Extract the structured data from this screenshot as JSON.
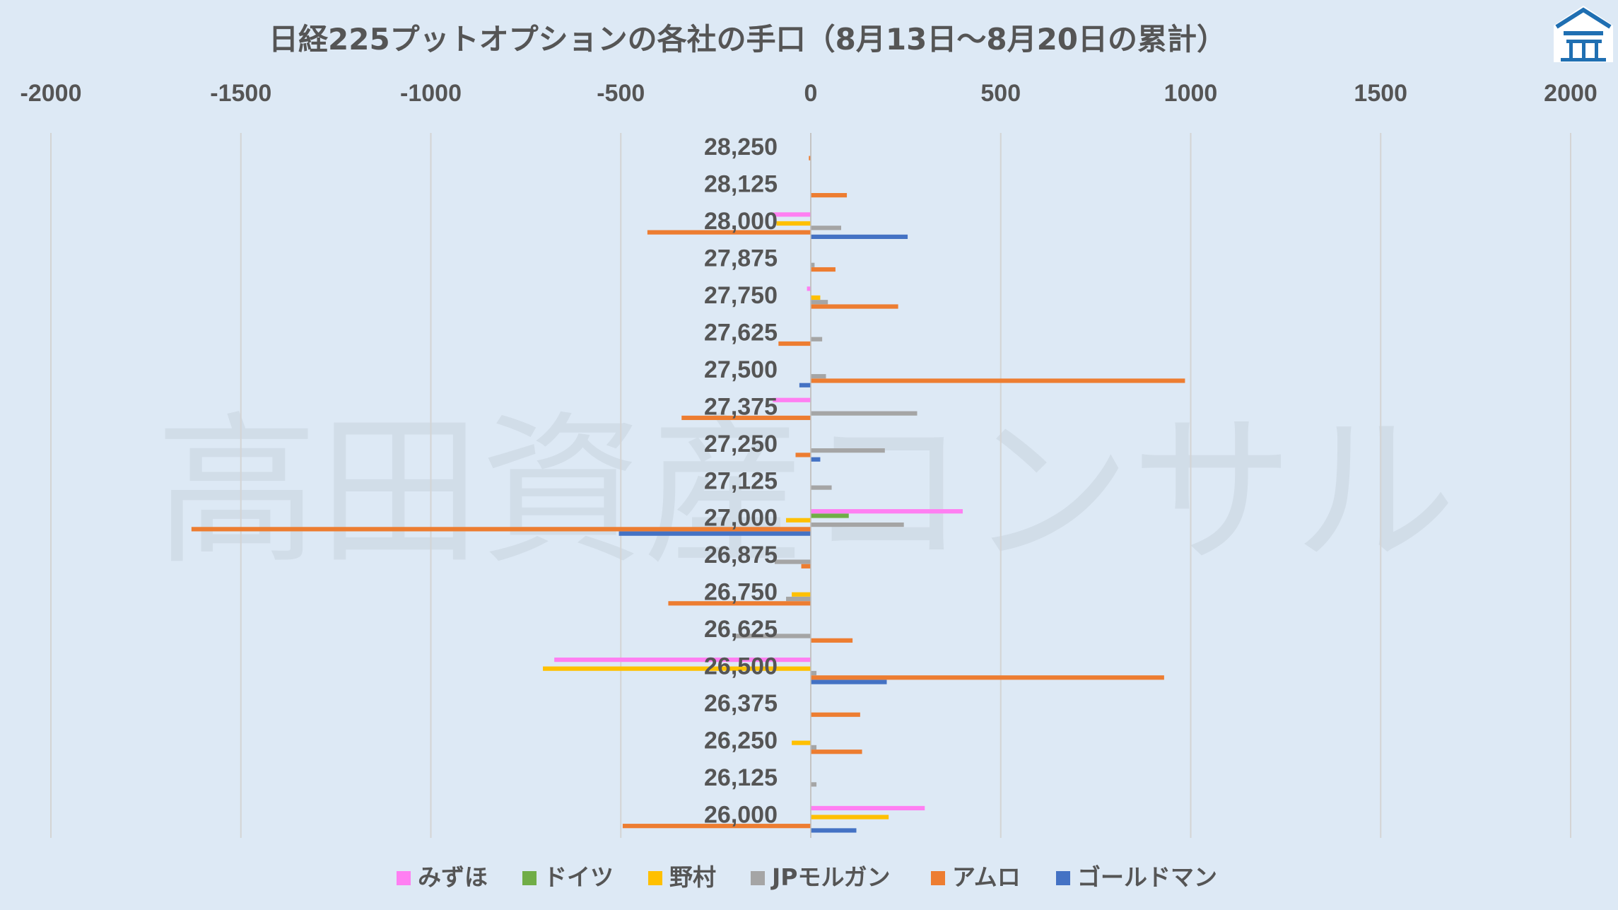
{
  "chart_data": {
    "type": "bar",
    "orientation": "horizontal",
    "title": "日経225プットオプションの各社の手口（8月13日～8月20日の累計）",
    "watermark": "高田資産コンサル",
    "xlim": [
      -2000,
      2000
    ],
    "xticks": [
      "-2000",
      "-1500",
      "-1000",
      "-500",
      "0",
      "500",
      "1000",
      "1500",
      "2000"
    ],
    "xtick_values": [
      -2000,
      -1500,
      -1000,
      -500,
      0,
      500,
      1000,
      1500,
      2000
    ],
    "categories": [
      "28,250",
      "28,125",
      "28,000",
      "27,875",
      "27,750",
      "27,625",
      "27,500",
      "27,375",
      "27,250",
      "27,125",
      "27,000",
      "26,875",
      "26,750",
      "26,625",
      "26,500",
      "26,375",
      "26,250",
      "26,125",
      "26,000"
    ],
    "grid": "vertical",
    "legend_position": "bottom",
    "series": [
      {
        "name": "みずほ",
        "color": "#ff7ff2",
        "values": [
          0,
          0,
          -100,
          0,
          -10,
          0,
          0,
          -100,
          0,
          0,
          400,
          0,
          0,
          0,
          -675,
          0,
          0,
          0,
          300
        ]
      },
      {
        "name": "ドイツ",
        "color": "#70ad47",
        "values": [
          0,
          0,
          0,
          0,
          0,
          0,
          0,
          0,
          0,
          0,
          100,
          0,
          0,
          0,
          0,
          0,
          0,
          0,
          0
        ]
      },
      {
        "name": "野村",
        "color": "#ffc000",
        "values": [
          0,
          0,
          -90,
          0,
          25,
          0,
          0,
          0,
          0,
          0,
          -65,
          0,
          -50,
          0,
          -705,
          0,
          -50,
          0,
          205
        ]
      },
      {
        "name": "JPモルガン",
        "color": "#a5a5a5",
        "values": [
          0,
          0,
          80,
          10,
          45,
          30,
          40,
          280,
          195,
          55,
          245,
          -95,
          -65,
          -200,
          15,
          0,
          15,
          15,
          0
        ]
      },
      {
        "name": "アムロ",
        "color": "#ed7d31",
        "values": [
          -5,
          95,
          -430,
          65,
          230,
          -85,
          985,
          -340,
          -40,
          0,
          -1630,
          -25,
          -375,
          110,
          930,
          130,
          135,
          0,
          -495
        ]
      },
      {
        "name": "ゴールドマン",
        "color": "#4472c4",
        "values": [
          0,
          0,
          255,
          0,
          0,
          0,
          -30,
          0,
          25,
          0,
          -505,
          0,
          0,
          0,
          200,
          0,
          0,
          0,
          120
        ]
      }
    ]
  },
  "logo": {
    "icon": "building-roof-logo-icon",
    "color": "#1f6fb2"
  }
}
